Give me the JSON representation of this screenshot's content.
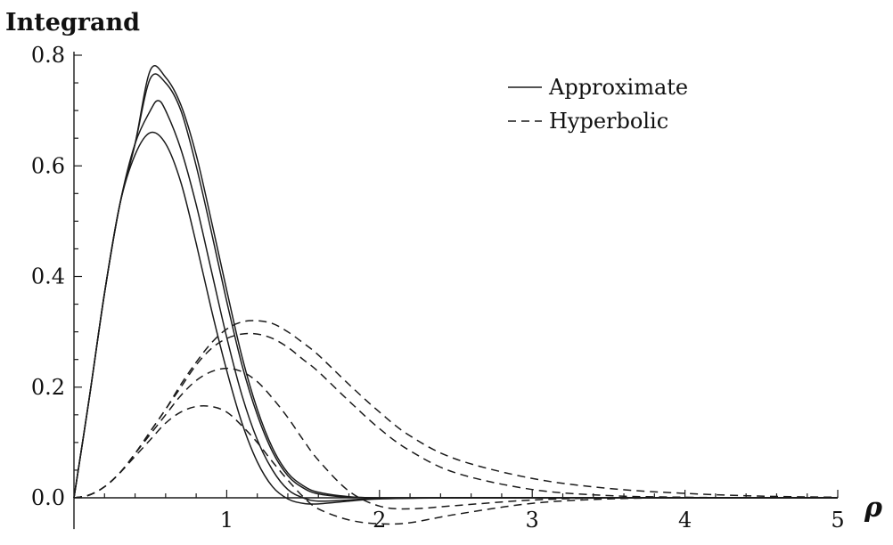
{
  "chart_data": {
    "type": "line",
    "title": "",
    "ylabel": "Integrand",
    "xlabel": "ρ",
    "xlim": [
      0,
      5
    ],
    "ylim": [
      -0.05,
      0.8
    ],
    "x_ticks": [
      {
        "value": 1,
        "label": "1"
      },
      {
        "value": 2,
        "label": "2"
      },
      {
        "value": 3,
        "label": "3"
      },
      {
        "value": 4,
        "label": "4"
      },
      {
        "value": 5,
        "label": "5"
      }
    ],
    "y_ticks": [
      {
        "value": 0.0,
        "label": "0.0"
      },
      {
        "value": 0.2,
        "label": "0.2"
      },
      {
        "value": 0.4,
        "label": "0.4"
      },
      {
        "value": 0.6,
        "label": "0.6"
      },
      {
        "value": 0.8,
        "label": "0.8"
      }
    ],
    "grid": false,
    "legend": {
      "position": "top-right",
      "entries": [
        {
          "label": "Approximate",
          "style": "solid"
        },
        {
          "label": "Hyperbolic",
          "style": "dashed"
        }
      ]
    },
    "line_color": "#1a1a1a",
    "series": [
      {
        "group": "Approximate",
        "style": "solid",
        "x": [
          0,
          0.1,
          0.2,
          0.3,
          0.4,
          0.5,
          0.6,
          0.7,
          0.8,
          0.9,
          1.0,
          1.1,
          1.2,
          1.3,
          1.4,
          1.5,
          1.6,
          1.8,
          2.0,
          2.5,
          3.0,
          4.0,
          5.0
        ],
        "y": [
          0,
          0.18,
          0.37,
          0.53,
          0.64,
          0.773,
          0.76,
          0.71,
          0.62,
          0.5,
          0.375,
          0.255,
          0.16,
          0.09,
          0.045,
          0.022,
          0.01,
          0.002,
          0,
          0,
          0,
          0,
          0
        ]
      },
      {
        "group": "Approximate",
        "style": "solid",
        "x": [
          0,
          0.1,
          0.2,
          0.3,
          0.4,
          0.5,
          0.6,
          0.7,
          0.8,
          0.9,
          1.0,
          1.1,
          1.2,
          1.3,
          1.4,
          1.5,
          1.6,
          1.8,
          2.0,
          2.5,
          3.0,
          4.0,
          5.0
        ],
        "y": [
          0,
          0.18,
          0.37,
          0.53,
          0.64,
          0.758,
          0.75,
          0.7,
          0.6,
          0.48,
          0.355,
          0.24,
          0.15,
          0.083,
          0.04,
          0.018,
          0.007,
          0.001,
          0,
          0,
          0,
          0,
          0
        ]
      },
      {
        "group": "Approximate",
        "style": "solid",
        "x": [
          0,
          0.1,
          0.2,
          0.3,
          0.4,
          0.5,
          0.55,
          0.6,
          0.7,
          0.8,
          0.9,
          1.0,
          1.1,
          1.2,
          1.3,
          1.4,
          1.5,
          1.6,
          1.8,
          2.0,
          2.5,
          3.0,
          4.0,
          5.0
        ],
        "y": [
          0,
          0.18,
          0.37,
          0.53,
          0.64,
          0.7,
          0.718,
          0.7,
          0.63,
          0.53,
          0.41,
          0.29,
          0.185,
          0.105,
          0.05,
          0.015,
          0.0,
          -0.006,
          -0.004,
          -0.001,
          0,
          0,
          0,
          0
        ]
      },
      {
        "group": "Approximate",
        "style": "solid",
        "x": [
          0,
          0.1,
          0.2,
          0.3,
          0.4,
          0.5,
          0.6,
          0.7,
          0.8,
          0.9,
          1.0,
          1.1,
          1.2,
          1.3,
          1.4,
          1.5,
          1.6,
          1.8,
          2.0,
          2.5,
          3.0,
          4.0,
          5.0
        ],
        "y": [
          0,
          0.18,
          0.37,
          0.53,
          0.62,
          0.66,
          0.64,
          0.57,
          0.46,
          0.34,
          0.23,
          0.135,
          0.065,
          0.02,
          -0.002,
          -0.01,
          -0.011,
          -0.006,
          -0.002,
          0,
          0,
          0,
          0
        ]
      },
      {
        "group": "Hyperbolic",
        "style": "dashed",
        "x": [
          0,
          0.1,
          0.2,
          0.3,
          0.4,
          0.5,
          0.6,
          0.7,
          0.8,
          0.9,
          1.0,
          1.1,
          1.2,
          1.3,
          1.4,
          1.5,
          1.6,
          1.8,
          2.0,
          2.2,
          2.5,
          3.0,
          3.5,
          4.0,
          4.5,
          5.0
        ],
        "y": [
          0,
          0.005,
          0.02,
          0.045,
          0.08,
          0.12,
          0.16,
          0.205,
          0.245,
          0.28,
          0.305,
          0.318,
          0.32,
          0.315,
          0.3,
          0.28,
          0.258,
          0.205,
          0.155,
          0.112,
          0.07,
          0.035,
          0.017,
          0.008,
          0.003,
          0.001
        ]
      },
      {
        "group": "Hyperbolic",
        "style": "dashed",
        "x": [
          0,
          0.1,
          0.2,
          0.3,
          0.4,
          0.5,
          0.6,
          0.7,
          0.8,
          0.9,
          1.0,
          1.1,
          1.2,
          1.3,
          1.4,
          1.5,
          1.6,
          1.8,
          2.0,
          2.2,
          2.5,
          3.0,
          3.5,
          4.0,
          4.5,
          5.0
        ],
        "y": [
          0,
          0.005,
          0.02,
          0.045,
          0.08,
          0.12,
          0.16,
          0.2,
          0.24,
          0.27,
          0.288,
          0.296,
          0.296,
          0.288,
          0.272,
          0.25,
          0.228,
          0.175,
          0.125,
          0.085,
          0.045,
          0.015,
          0.004,
          0.001,
          0,
          0
        ]
      },
      {
        "group": "Hyperbolic",
        "style": "dashed",
        "x": [
          0,
          0.1,
          0.2,
          0.3,
          0.4,
          0.5,
          0.6,
          0.7,
          0.8,
          0.9,
          1.0,
          1.1,
          1.2,
          1.3,
          1.4,
          1.5,
          1.6,
          1.8,
          2.0,
          2.2,
          2.5,
          3.0,
          3.5,
          4.0,
          4.5,
          5.0
        ],
        "y": [
          0,
          0.005,
          0.02,
          0.045,
          0.08,
          0.115,
          0.15,
          0.185,
          0.212,
          0.228,
          0.234,
          0.228,
          0.21,
          0.18,
          0.145,
          0.105,
          0.068,
          0.012,
          -0.015,
          -0.02,
          -0.014,
          -0.004,
          0,
          0,
          0,
          0
        ]
      },
      {
        "group": "Hyperbolic",
        "style": "dashed",
        "x": [
          0,
          0.1,
          0.2,
          0.3,
          0.4,
          0.5,
          0.6,
          0.7,
          0.8,
          0.9,
          1.0,
          1.1,
          1.2,
          1.3,
          1.4,
          1.5,
          1.6,
          1.8,
          2.0,
          2.2,
          2.5,
          3.0,
          3.5,
          4.0,
          4.5,
          5.0
        ],
        "y": [
          0,
          0.005,
          0.02,
          0.045,
          0.075,
          0.105,
          0.135,
          0.155,
          0.165,
          0.165,
          0.155,
          0.13,
          0.1,
          0.065,
          0.032,
          0.002,
          -0.02,
          -0.04,
          -0.047,
          -0.045,
          -0.03,
          -0.01,
          -0.002,
          0,
          0,
          0
        ]
      }
    ]
  }
}
